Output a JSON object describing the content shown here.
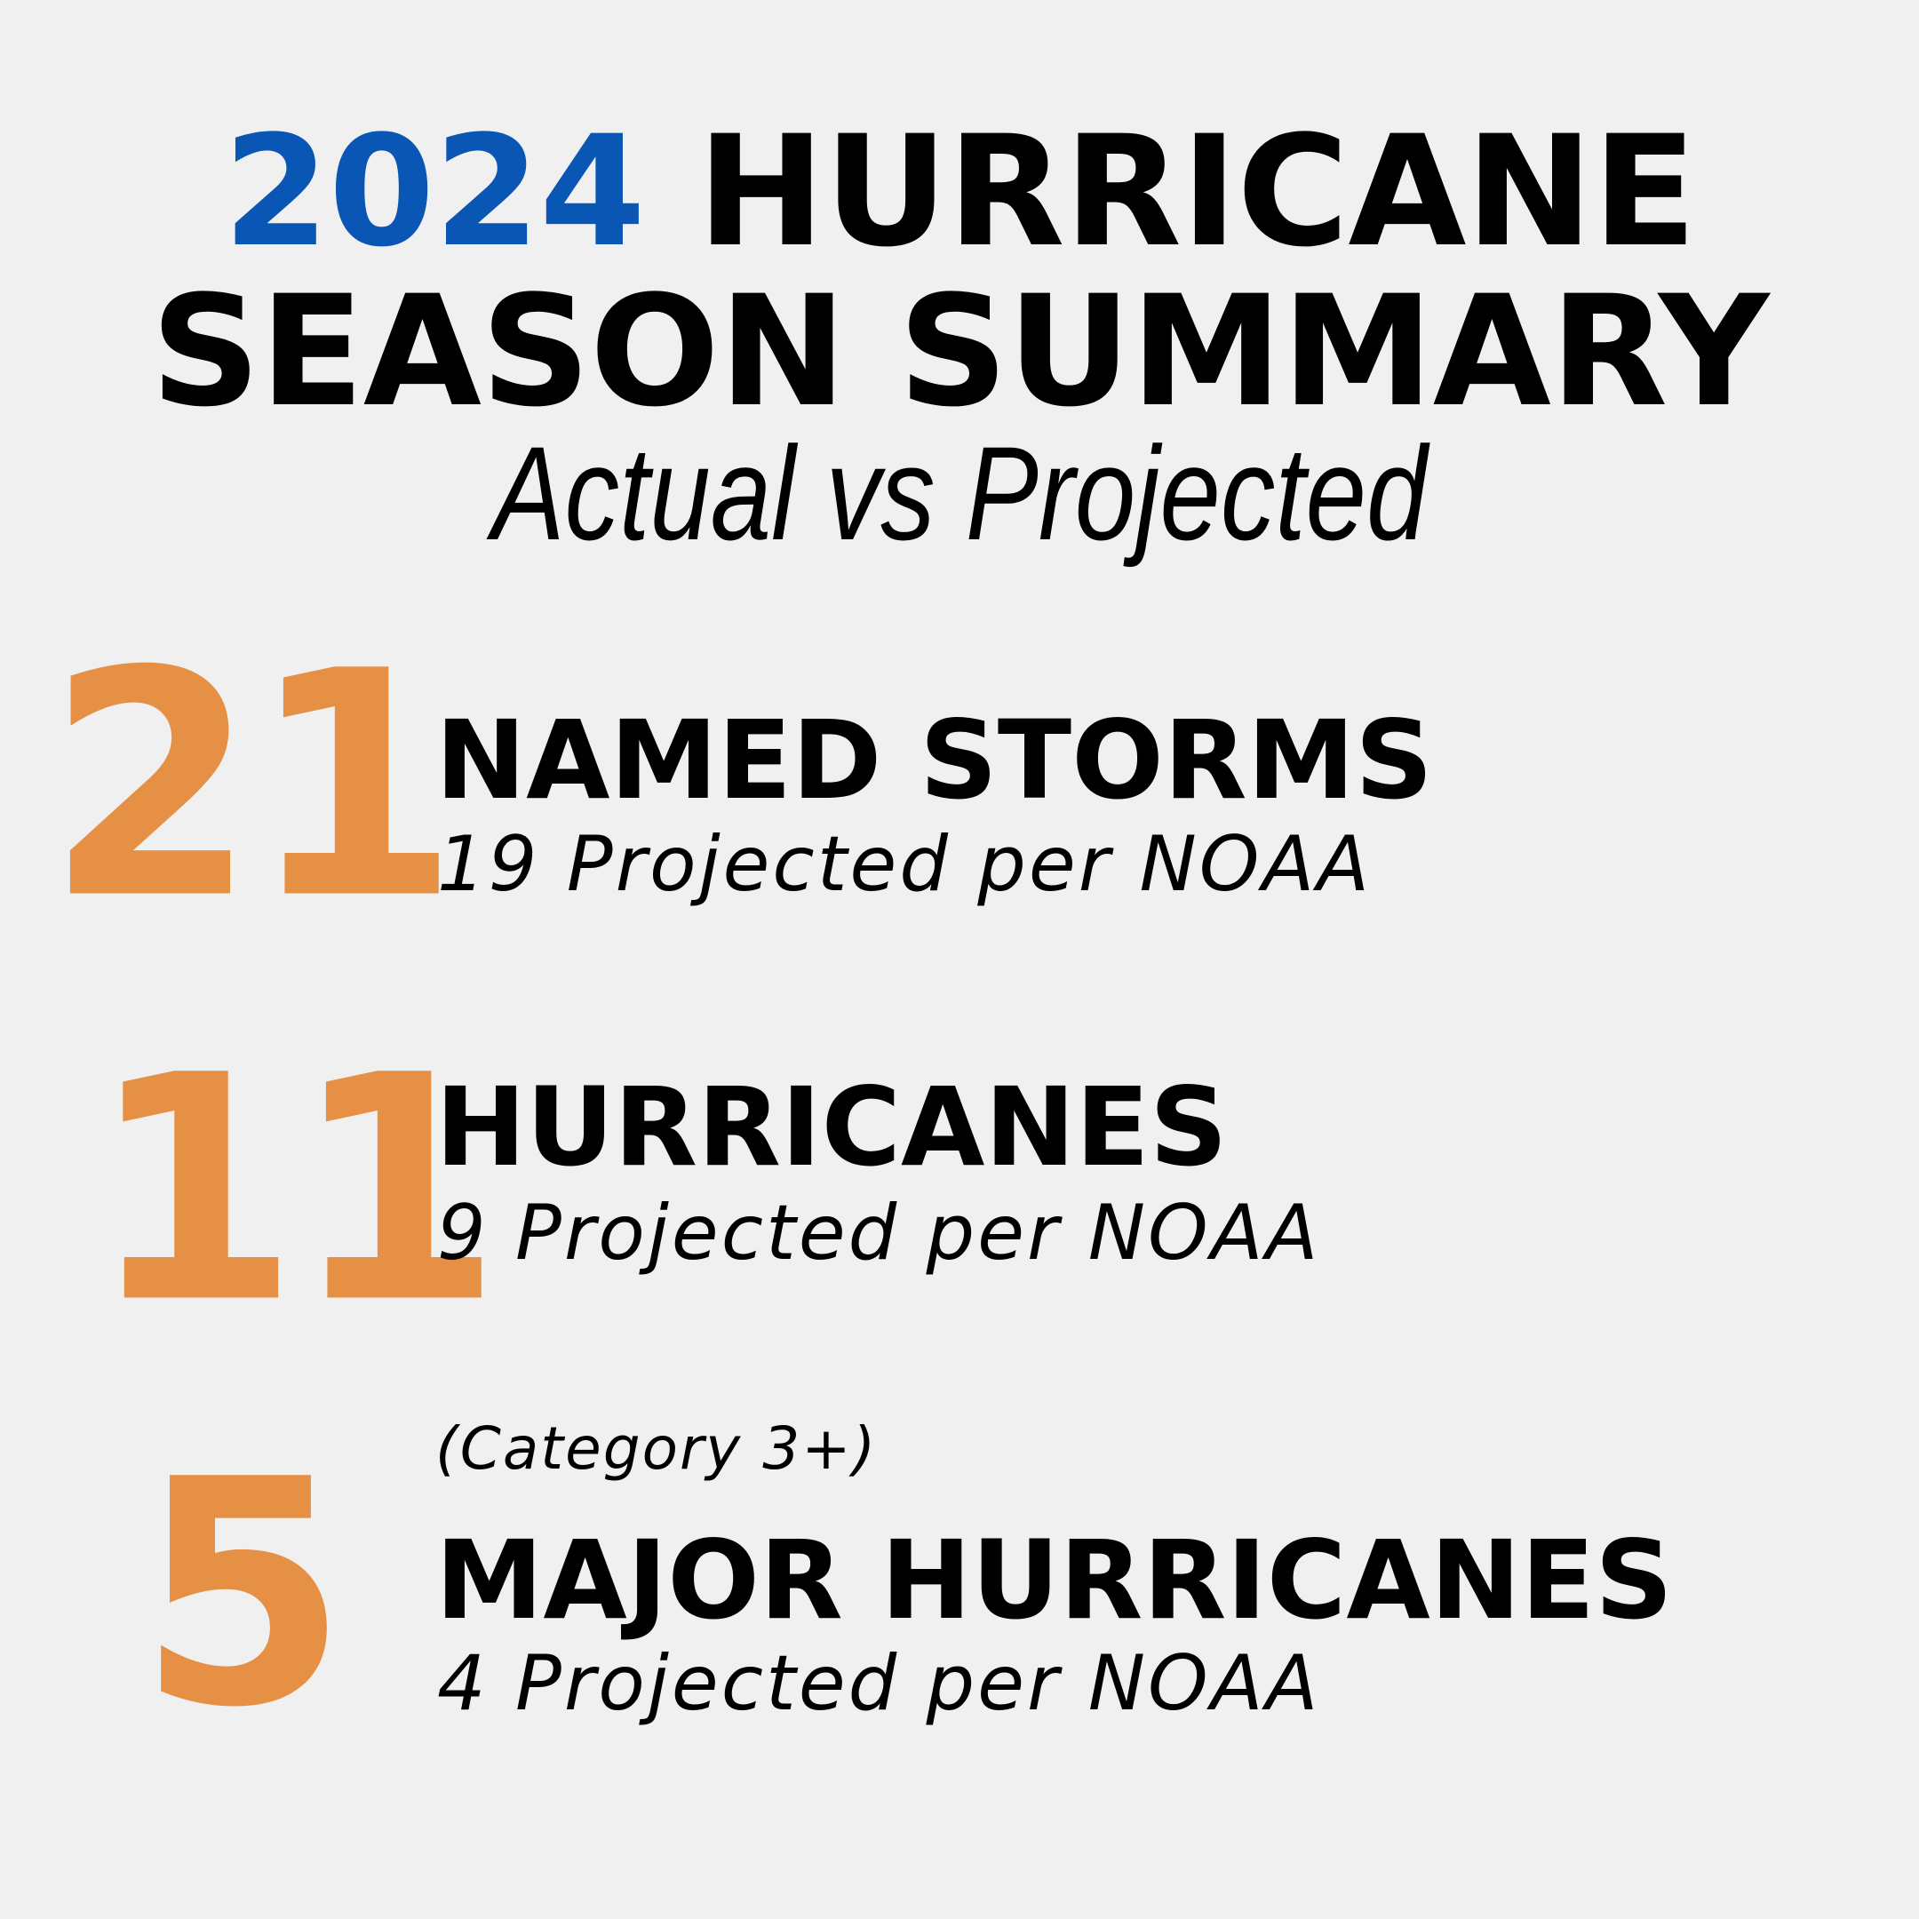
{
  "header": {
    "year": "2024",
    "title_rest": "HURRICANE",
    "title_line2": "SEASON SUMMARY",
    "subtitle": "Actual vs Projected"
  },
  "stats": [
    {
      "actual": "21",
      "label": "NAMED STORMS",
      "projected_text": "19 Projected per NOAA"
    },
    {
      "actual": "11",
      "label": "HURRICANES",
      "projected_text": "9 Projected per NOAA"
    },
    {
      "actual": "5",
      "note": "(Category 3+)",
      "label": "MAJOR HURRICANES",
      "projected_text": "4 Projected per NOAA"
    }
  ],
  "colors": {
    "year": "#0a56b5",
    "numbers": "#e69045",
    "text": "#000000",
    "background": "#f0f0f0"
  }
}
